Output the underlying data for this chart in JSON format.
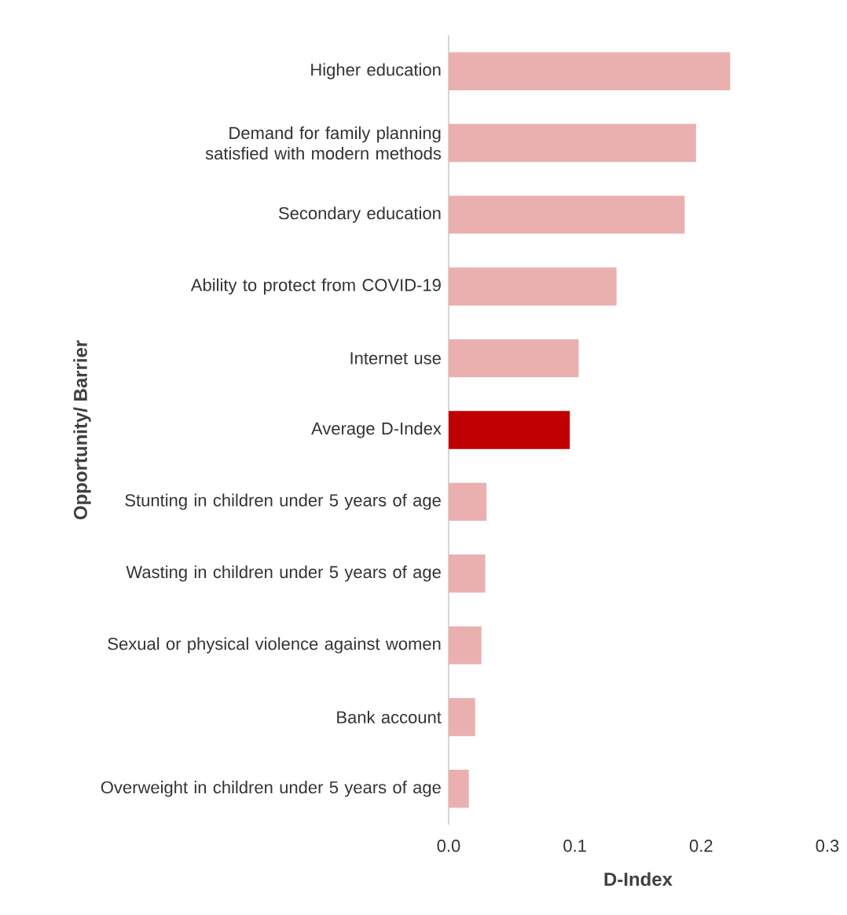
{
  "chart_data": {
    "type": "bar",
    "orientation": "horizontal",
    "xlabel": "D-Index",
    "ylabel": "Opportunity/ Barrier",
    "categories": [
      "Higher education",
      "Demand for family planning satisfied with modern methods",
      "Secondary education",
      "Ability to protect from COVID-19",
      "Internet use",
      "Average D-Index",
      "Stunting in children under 5 years of age",
      "Wasting in children under 5 years of age",
      "Sexual or physical violence against women",
      "Bank account",
      "Overweight in children under 5 years of age"
    ],
    "values": [
      0.223,
      0.196,
      0.187,
      0.133,
      0.103,
      0.096,
      0.03,
      0.029,
      0.026,
      0.021,
      0.016
    ],
    "colors": [
      "#eab0b0",
      "#eab0b0",
      "#eab0b0",
      "#eab0b0",
      "#eab0b0",
      "#c00000",
      "#eab0b0",
      "#eab0b0",
      "#eab0b0",
      "#eab0b0",
      "#eab0b0"
    ],
    "xlim": [
      0,
      0.3
    ],
    "xticks": [
      {
        "value": 0,
        "label": "0.0"
      },
      0.1,
      0.2,
      0.3
    ]
  }
}
